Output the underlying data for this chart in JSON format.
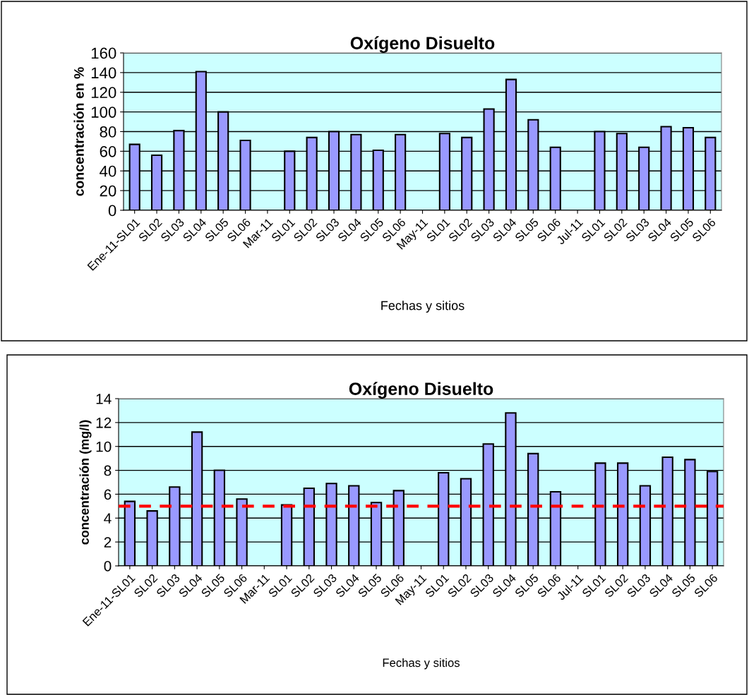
{
  "chart_data": [
    {
      "type": "bar",
      "title": "Oxígeno Disuelto",
      "xlabel": "Fechas y sitios",
      "ylabel": "concentración en %",
      "categories": [
        "Ene-11-SL01",
        "SL02",
        "SL03",
        "SL04",
        "SL05",
        "SL06",
        "Mar-11",
        "SL01",
        "SL02",
        "SL03",
        "SL04",
        "SL05",
        "SL06",
        "May-11",
        "SL01",
        "SL02",
        "SL03",
        "SL04",
        "SL05",
        "SL06",
        "Jul-11",
        "SL01",
        "SL02",
        "SL03",
        "SL04",
        "SL05",
        "SL06"
      ],
      "values": [
        67,
        56,
        81,
        141,
        100,
        71,
        null,
        60,
        74,
        80,
        77,
        61,
        77,
        null,
        78,
        74,
        103,
        133,
        92,
        64,
        null,
        80,
        78,
        64,
        85,
        84,
        74
      ],
      "color": "#9999ff",
      "ylim": [
        0,
        160
      ],
      "yticks": [
        0,
        20,
        40,
        60,
        80,
        100,
        120,
        140,
        160
      ],
      "grid": "y",
      "legend": false
    },
    {
      "type": "bar",
      "title": "Oxígeno Disuelto",
      "xlabel": "Fechas y sitios",
      "ylabel": "concentración (mg/l)",
      "categories": [
        "Ene-11-SL01",
        "SL02",
        "SL03",
        "SL04",
        "SL05",
        "SL06",
        "Mar-11",
        "SL01",
        "SL02",
        "SL03",
        "SL04",
        "SL05",
        "SL06",
        "May-11",
        "SL01",
        "SL02",
        "SL03",
        "SL04",
        "SL05",
        "SL06",
        "Jul-11",
        "SL01",
        "SL02",
        "SL03",
        "SL04",
        "SL05",
        "SL06"
      ],
      "values": [
        5.4,
        4.6,
        6.6,
        11.2,
        8.0,
        5.6,
        null,
        5.1,
        6.5,
        6.9,
        6.7,
        5.3,
        6.3,
        null,
        7.8,
        7.3,
        10.2,
        12.8,
        9.4,
        6.2,
        null,
        8.6,
        8.6,
        6.7,
        9.1,
        8.9,
        7.9
      ],
      "color": "#9999ff",
      "ylim": [
        0,
        14
      ],
      "yticks": [
        0,
        2,
        4,
        6,
        8,
        10,
        12,
        14
      ],
      "grid": "y",
      "legend": false,
      "ref_lines": [
        {
          "axis": "y",
          "value": 5,
          "color": "#ff0000",
          "line_style": "dashed"
        }
      ]
    }
  ]
}
